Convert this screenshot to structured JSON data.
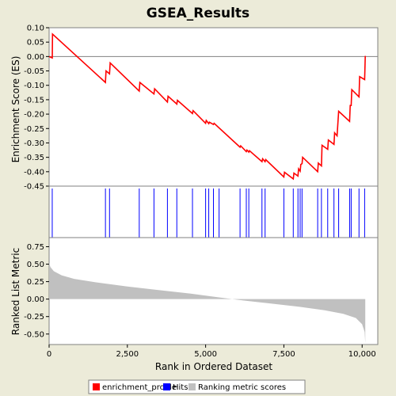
{
  "chart_data": {
    "type": "line",
    "title": "GSEA_Results",
    "xlabel": "Rank in Ordered Dataset",
    "xlim": [
      0,
      10500
    ],
    "x_ticks": [
      0,
      2500,
      5000,
      7500,
      10000
    ],
    "x_tick_labels": [
      "0",
      "2,500",
      "5,000",
      "7,500",
      "10,000"
    ],
    "panels": {
      "enrichment": {
        "ylabel": "Enrichment Score (ES)",
        "ylim": [
          -0.45,
          0.1
        ],
        "y_ticks": [
          0.1,
          0.05,
          0.0,
          -0.05,
          -0.1,
          -0.15,
          -0.2,
          -0.25,
          -0.3,
          -0.35,
          -0.4,
          -0.45
        ],
        "y_tick_labels": [
          "0.10",
          "0.05",
          "0.00",
          "-0.05",
          "-0.10",
          "-0.15",
          "-0.20",
          "-0.25",
          "-0.30",
          "-0.35",
          "-0.40",
          "-0.45"
        ],
        "zero_line": true
      },
      "ranked_metric": {
        "ylabel": "Ranked List Metric",
        "ylim": [
          -0.65,
          0.88
        ],
        "y_ticks": [
          0.75,
          0.5,
          0.25,
          0.0,
          -0.25,
          -0.5
        ],
        "y_tick_labels": [
          "0.75",
          "0.50",
          "0.25",
          "0.00",
          "-0.25",
          "-0.50"
        ],
        "curve_points": [
          [
            0,
            0.52
          ],
          [
            40,
            0.46
          ],
          [
            150,
            0.4
          ],
          [
            400,
            0.34
          ],
          [
            800,
            0.29
          ],
          [
            1500,
            0.24
          ],
          [
            2500,
            0.18
          ],
          [
            3500,
            0.13
          ],
          [
            4500,
            0.08
          ],
          [
            5500,
            0.02
          ],
          [
            6200,
            -0.02
          ],
          [
            7000,
            -0.06
          ],
          [
            8000,
            -0.11
          ],
          [
            8800,
            -0.16
          ],
          [
            9400,
            -0.21
          ],
          [
            9800,
            -0.27
          ],
          [
            10000,
            -0.36
          ],
          [
            10080,
            -0.47
          ],
          [
            10100,
            -0.63
          ]
        ]
      }
    },
    "series": [
      {
        "name": "enrichment_profile",
        "color": "#ff0000",
        "points": [
          [
            0,
            0.0
          ],
          [
            100,
            -0.005
          ],
          [
            110,
            0.078
          ],
          [
            1800,
            -0.09
          ],
          [
            1820,
            -0.05
          ],
          [
            1930,
            -0.06
          ],
          [
            1950,
            -0.022
          ],
          [
            2880,
            -0.12
          ],
          [
            2900,
            -0.09
          ],
          [
            3350,
            -0.13
          ],
          [
            3370,
            -0.112
          ],
          [
            3780,
            -0.158
          ],
          [
            3800,
            -0.138
          ],
          [
            4080,
            -0.165
          ],
          [
            4100,
            -0.152
          ],
          [
            4580,
            -0.198
          ],
          [
            4600,
            -0.188
          ],
          [
            5000,
            -0.232
          ],
          [
            5020,
            -0.222
          ],
          [
            5100,
            -0.233
          ],
          [
            5120,
            -0.228
          ],
          [
            5250,
            -0.236
          ],
          [
            5270,
            -0.232
          ],
          [
            6100,
            -0.315
          ],
          [
            6120,
            -0.31
          ],
          [
            6300,
            -0.33
          ],
          [
            6320,
            -0.325
          ],
          [
            6380,
            -0.332
          ],
          [
            6400,
            -0.327
          ],
          [
            6800,
            -0.365
          ],
          [
            6820,
            -0.355
          ],
          [
            6900,
            -0.365
          ],
          [
            6920,
            -0.358
          ],
          [
            7500,
            -0.418
          ],
          [
            7520,
            -0.402
          ],
          [
            7800,
            -0.425
          ],
          [
            7820,
            -0.405
          ],
          [
            7950,
            -0.415
          ],
          [
            7970,
            -0.39
          ],
          [
            8020,
            -0.398
          ],
          [
            8040,
            -0.375
          ],
          [
            8080,
            -0.372
          ],
          [
            8100,
            -0.35
          ],
          [
            8580,
            -0.4
          ],
          [
            8600,
            -0.37
          ],
          [
            8700,
            -0.38
          ],
          [
            8720,
            -0.308
          ],
          [
            8900,
            -0.322
          ],
          [
            8920,
            -0.29
          ],
          [
            9100,
            -0.305
          ],
          [
            9120,
            -0.265
          ],
          [
            9200,
            -0.275
          ],
          [
            9250,
            -0.19
          ],
          [
            9600,
            -0.225
          ],
          [
            9620,
            -0.17
          ],
          [
            9650,
            -0.17
          ],
          [
            9670,
            -0.115
          ],
          [
            9900,
            -0.14
          ],
          [
            9920,
            -0.07
          ],
          [
            10080,
            -0.08
          ],
          [
            10100,
            0.002
          ]
        ]
      },
      {
        "name": "Hits",
        "color": "#0000ff",
        "hit_ranks": [
          100,
          1800,
          1930,
          2880,
          3350,
          3780,
          4080,
          4580,
          5000,
          5100,
          5250,
          5430,
          6100,
          6300,
          6380,
          6800,
          6900,
          7500,
          7800,
          7950,
          8020,
          8080,
          8580,
          8700,
          8900,
          9100,
          9250,
          9600,
          9650,
          9900,
          10080
        ]
      },
      {
        "name": "Ranking metric scores",
        "color": "#c0c0c0"
      }
    ],
    "legend_placement": "bottom",
    "grid": false
  }
}
